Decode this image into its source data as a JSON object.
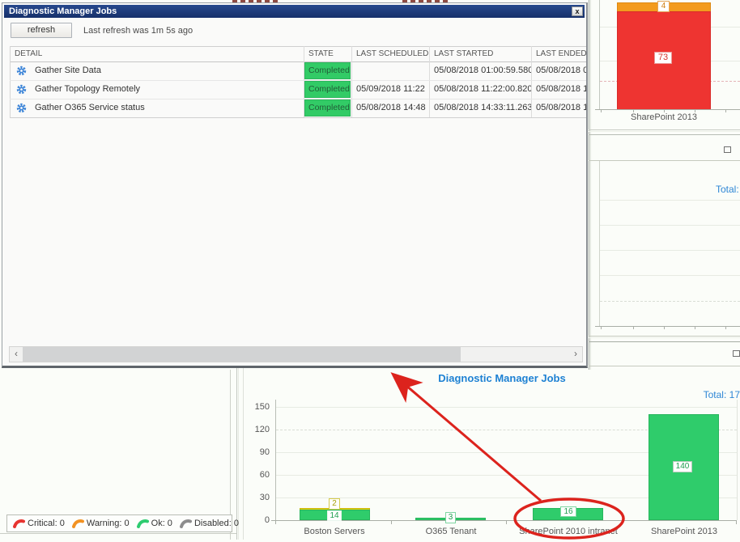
{
  "dialog": {
    "title": "Diagnostic Manager Jobs",
    "close_glyph": "x",
    "refresh_label": "refresh",
    "last_refresh_text": "Last refresh was 1m 5s ago",
    "columns": {
      "detail": "DETAIL",
      "state": "STATE",
      "last_scheduled": "LAST SCHEDULED",
      "last_started": "LAST STARTED",
      "last_ended": "LAST ENDED"
    },
    "rows": [
      {
        "detail": "Gather Site Data",
        "state": "Completed",
        "last_scheduled": "",
        "last_started": "05/08/2018 01:00:59.580",
        "last_ended": "05/08/2018 0"
      },
      {
        "detail": "Gather Topology Remotely",
        "state": "Completed",
        "last_scheduled": "05/09/2018 11:22",
        "last_started": "05/08/2018 11:22:00.820",
        "last_ended": "05/08/2018 1"
      },
      {
        "detail": "Gather O365 Service status",
        "state": "Completed",
        "last_scheduled": "05/08/2018 14:48",
        "last_started": "05/08/2018 14:33:11.263",
        "last_ended": "05/08/2018 14"
      }
    ],
    "scrollbar": {
      "left_glyph": "‹",
      "right_glyph": "›"
    }
  },
  "right_panel": {
    "total_label": "Total:"
  },
  "chart_data": [
    {
      "type": "bar",
      "title": "",
      "categories": [
        "SharePoint 2013"
      ],
      "series": [
        {
          "name": "Critical (red)",
          "values": [
            73
          ]
        },
        {
          "name": "Warning (orange)",
          "values": [
            4
          ]
        }
      ],
      "stacked": true,
      "note": "partially visible stacked bar at top-right"
    },
    {
      "type": "bar",
      "title": "Diagnostic Manager Jobs",
      "total": "Total: 17",
      "categories": [
        "Boston Servers",
        "O365 Tenant",
        "SharePoint 2010 intranet",
        "SharePoint 2013"
      ],
      "series": [
        {
          "name": "Ok (green)",
          "values": [
            14,
            3,
            16,
            140
          ]
        },
        {
          "name": "Warning (yellow)",
          "values": [
            2,
            0,
            0,
            0
          ]
        }
      ],
      "stacked": true,
      "ylim": [
        0,
        150
      ],
      "yticks": [
        0,
        30,
        60,
        90,
        120,
        150
      ],
      "grid": true,
      "legend_position": "none"
    }
  ],
  "legend": {
    "items": [
      {
        "label": "Critical: 0",
        "color": "#e73430"
      },
      {
        "label": "Warning: 0",
        "color": "#f29222"
      },
      {
        "label": "Ok: 0",
        "color": "#2ecc70"
      },
      {
        "label": "Disabled: 0",
        "color": "#8d8d8d"
      }
    ]
  },
  "annotation": {
    "color": "#dc231d"
  },
  "colors": {
    "titlebar": "#1b3a78",
    "badge_green": "#32cb66",
    "bar_green": "#2fcc6b",
    "bar_red": "#ee3431",
    "bar_orange": "#f39b1e",
    "bar_yellow": "#e3d011",
    "link_blue": "#2e86d5"
  }
}
